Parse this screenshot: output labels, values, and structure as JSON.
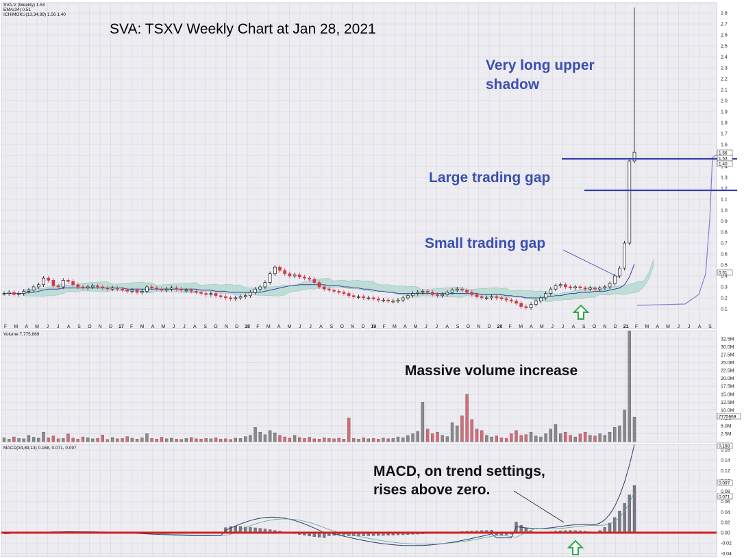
{
  "colors": {
    "panel_bg": "#ececf1",
    "grid": "#d6d6de",
    "up_candle": "#111111",
    "down_candle": "#d23a4a",
    "vol_up": "#8a8a8a",
    "vol_down": "#d96a76",
    "ema": "#3a3ea0",
    "cloud_green": "#a9d7cb",
    "cloud_purple": "#c9b6e4",
    "annot_blue": "#3b4fb0",
    "zero_line": "#d42020",
    "gap_line": "#3340b0",
    "arrow_green": "#2ea84a"
  },
  "chart_data": [
    {
      "type": "line",
      "panel": "price",
      "title": "SVA: TSXV Weekly Chart at Jan 28, 2021",
      "legend": [
        "SVA.V (Weekly) 1.53",
        "EMA(34) 0.51",
        "ICHIMOKU(13,34,89) 1.56 1.40"
      ],
      "ylim": [
        0.05,
        2.9
      ],
      "y_ticks": [
        "0.1",
        "0.2",
        "0.3",
        "0.4",
        "0.5",
        "0.6",
        "0.7",
        "0.8",
        "0.9",
        "1.0",
        "1.1",
        "1.2",
        "1.3",
        "1.4",
        "1.5",
        "1.6",
        "1.7",
        "1.8",
        "1.9",
        "2.0",
        "2.1",
        "2.2",
        "2.3",
        "2.4",
        "2.5",
        "2.6",
        "2.7",
        "2.8"
      ],
      "price_tags": [
        "1.56",
        "1.53",
        "1.40",
        "0.51"
      ],
      "x_ticks": [
        "F",
        "M",
        "A",
        "M",
        "J",
        "J",
        "A",
        "S",
        "O",
        "N",
        "D",
        "17",
        "F",
        "M",
        "A",
        "M",
        "J",
        "J",
        "A",
        "S",
        "O",
        "N",
        "D",
        "18",
        "F",
        "M",
        "A",
        "M",
        "J",
        "J",
        "A",
        "S",
        "O",
        "N",
        "D",
        "19",
        "F",
        "M",
        "A",
        "M",
        "J",
        "J",
        "A",
        "S",
        "O",
        "N",
        "D",
        "20",
        "F",
        "M",
        "A",
        "M",
        "J",
        "J",
        "A",
        "S",
        "O",
        "N",
        "D",
        "21",
        "F",
        "M",
        "A",
        "M",
        "J",
        "J",
        "A",
        "S"
      ],
      "series": [
        {
          "role": "close",
          "values": [
            0.24,
            0.25,
            0.23,
            0.24,
            0.26,
            0.27,
            0.3,
            0.32,
            0.38,
            0.36,
            0.31,
            0.3,
            0.36,
            0.35,
            0.32,
            0.3,
            0.29,
            0.3,
            0.31,
            0.3,
            0.29,
            0.28,
            0.29,
            0.28,
            0.27,
            0.26,
            0.27,
            0.25,
            0.26,
            0.3,
            0.29,
            0.28,
            0.27,
            0.28,
            0.29,
            0.28,
            0.27,
            0.27,
            0.26,
            0.25,
            0.24,
            0.23,
            0.24,
            0.22,
            0.21,
            0.2,
            0.19,
            0.2,
            0.21,
            0.22,
            0.25,
            0.28,
            0.3,
            0.34,
            0.42,
            0.48,
            0.45,
            0.42,
            0.4,
            0.41,
            0.39,
            0.38,
            0.37,
            0.34,
            0.3,
            0.28,
            0.27,
            0.26,
            0.25,
            0.24,
            0.22,
            0.21,
            0.21,
            0.2,
            0.2,
            0.19,
            0.18,
            0.18,
            0.17,
            0.17,
            0.18,
            0.2,
            0.22,
            0.24,
            0.25,
            0.26,
            0.25,
            0.23,
            0.22,
            0.23,
            0.25,
            0.27,
            0.28,
            0.27,
            0.25,
            0.23,
            0.21,
            0.2,
            0.2,
            0.21,
            0.2,
            0.19,
            0.18,
            0.17,
            0.15,
            0.12,
            0.11,
            0.14,
            0.17,
            0.2,
            0.24,
            0.28,
            0.31,
            0.32,
            0.3,
            0.29,
            0.3,
            0.29,
            0.28,
            0.29,
            0.28,
            0.29,
            0.3,
            0.33,
            0.4,
            0.47,
            0.7,
            1.45,
            1.53
          ]
        },
        {
          "role": "ema34",
          "values": [
            0.24,
            0.24,
            0.24,
            0.24,
            0.24,
            0.25,
            0.25,
            0.26,
            0.27,
            0.28,
            0.28,
            0.28,
            0.29,
            0.29,
            0.29,
            0.29,
            0.29,
            0.29,
            0.29,
            0.29,
            0.29,
            0.29,
            0.29,
            0.29,
            0.29,
            0.28,
            0.28,
            0.28,
            0.28,
            0.28,
            0.28,
            0.28,
            0.28,
            0.28,
            0.28,
            0.28,
            0.28,
            0.28,
            0.28,
            0.28,
            0.27,
            0.27,
            0.27,
            0.26,
            0.26,
            0.26,
            0.25,
            0.25,
            0.25,
            0.25,
            0.25,
            0.25,
            0.25,
            0.26,
            0.27,
            0.28,
            0.29,
            0.3,
            0.31,
            0.31,
            0.32,
            0.32,
            0.32,
            0.32,
            0.32,
            0.32,
            0.31,
            0.31,
            0.31,
            0.3,
            0.3,
            0.29,
            0.29,
            0.28,
            0.28,
            0.27,
            0.26,
            0.26,
            0.25,
            0.25,
            0.24,
            0.24,
            0.24,
            0.24,
            0.24,
            0.24,
            0.24,
            0.24,
            0.24,
            0.24,
            0.24,
            0.24,
            0.24,
            0.24,
            0.24,
            0.24,
            0.24,
            0.23,
            0.23,
            0.23,
            0.23,
            0.23,
            0.22,
            0.22,
            0.21,
            0.21,
            0.2,
            0.2,
            0.2,
            0.2,
            0.21,
            0.21,
            0.22,
            0.22,
            0.23,
            0.24,
            0.24,
            0.25,
            0.25,
            0.25,
            0.26,
            0.26,
            0.26,
            0.27,
            0.28,
            0.29,
            0.32,
            0.39,
            0.51
          ]
        }
      ]
    },
    {
      "type": "bar",
      "panel": "volume",
      "legend": "Volume 7,775,669",
      "ylim": [
        0,
        35000000
      ],
      "y_ticks": [
        "2.5M",
        "5.0M",
        "7.5M",
        "10.0M",
        "12.5M",
        "15.0M",
        "17.5M",
        "20.0M",
        "22.5M",
        "25.0M",
        "27.5M",
        "30.0M",
        "32.5M"
      ],
      "last_tag": "7775669",
      "values": [
        1.2,
        0.8,
        1.5,
        1.0,
        0.9,
        2.0,
        1.4,
        1.1,
        3.0,
        1.2,
        1.8,
        0.9,
        1.0,
        2.4,
        1.1,
        0.8,
        1.5,
        1.2,
        0.9,
        1.0,
        2.1,
        0.7,
        1.3,
        0.9,
        1.0,
        1.6,
        1.1,
        0.8,
        1.2,
        2.5,
        1.0,
        0.8,
        1.4,
        0.9,
        1.1,
        0.8,
        0.7,
        1.0,
        1.3,
        0.9,
        0.8,
        1.0,
        0.9,
        1.2,
        0.8,
        0.9,
        0.7,
        1.1,
        1.0,
        1.6,
        2.0,
        4.5,
        3.0,
        2.2,
        3.5,
        2.8,
        2.0,
        1.5,
        1.1,
        2.0,
        1.3,
        1.0,
        1.4,
        0.9,
        0.8,
        1.2,
        1.0,
        0.9,
        1.1,
        0.8,
        7.5,
        1.0,
        0.8,
        1.2,
        0.9,
        1.0,
        0.8,
        1.1,
        0.9,
        1.0,
        1.5,
        1.2,
        1.9,
        2.5,
        3.2,
        12.5,
        4.0,
        2.5,
        3.0,
        2.0,
        1.6,
        6.0,
        5.0,
        8.2,
        15.0,
        7.0,
        4.0,
        3.5,
        2.0,
        1.5,
        1.8,
        1.2,
        1.0,
        2.5,
        3.5,
        2.0,
        2.2,
        3.0,
        1.8,
        1.5,
        2.5,
        4.0,
        5.5,
        2.5,
        3.0,
        2.0,
        1.5,
        2.4,
        3.0,
        2.0,
        1.8,
        2.5,
        2.0,
        3.0,
        4.5,
        5.0,
        10.0,
        35.0,
        7.78
      ]
    },
    {
      "type": "line",
      "panel": "macd",
      "legend": "MACD(34,89,13) 0.168, 0.071, 0.097",
      "ylim": [
        -0.05,
        0.17
      ],
      "y_ticks": [
        "-0.04",
        "-0.02",
        "0.00",
        "0.02",
        "0.04",
        "0.06",
        "0.08",
        "0.10",
        "0.12",
        "0.14",
        "0.16"
      ],
      "value_tags": [
        "0.168",
        "0.097",
        "0.071"
      ]
    }
  ],
  "annotations": {
    "title": "SVA: TSXV Weekly Chart at Jan 28, 2021",
    "upper_shadow_1": "Very long upper",
    "upper_shadow_2": "shadow",
    "large_gap": "Large trading gap",
    "small_gap": "Small trading gap",
    "volume": "Massive volume increase",
    "macd_1": "MACD, on trend settings,",
    "macd_2": "rises above zero."
  }
}
